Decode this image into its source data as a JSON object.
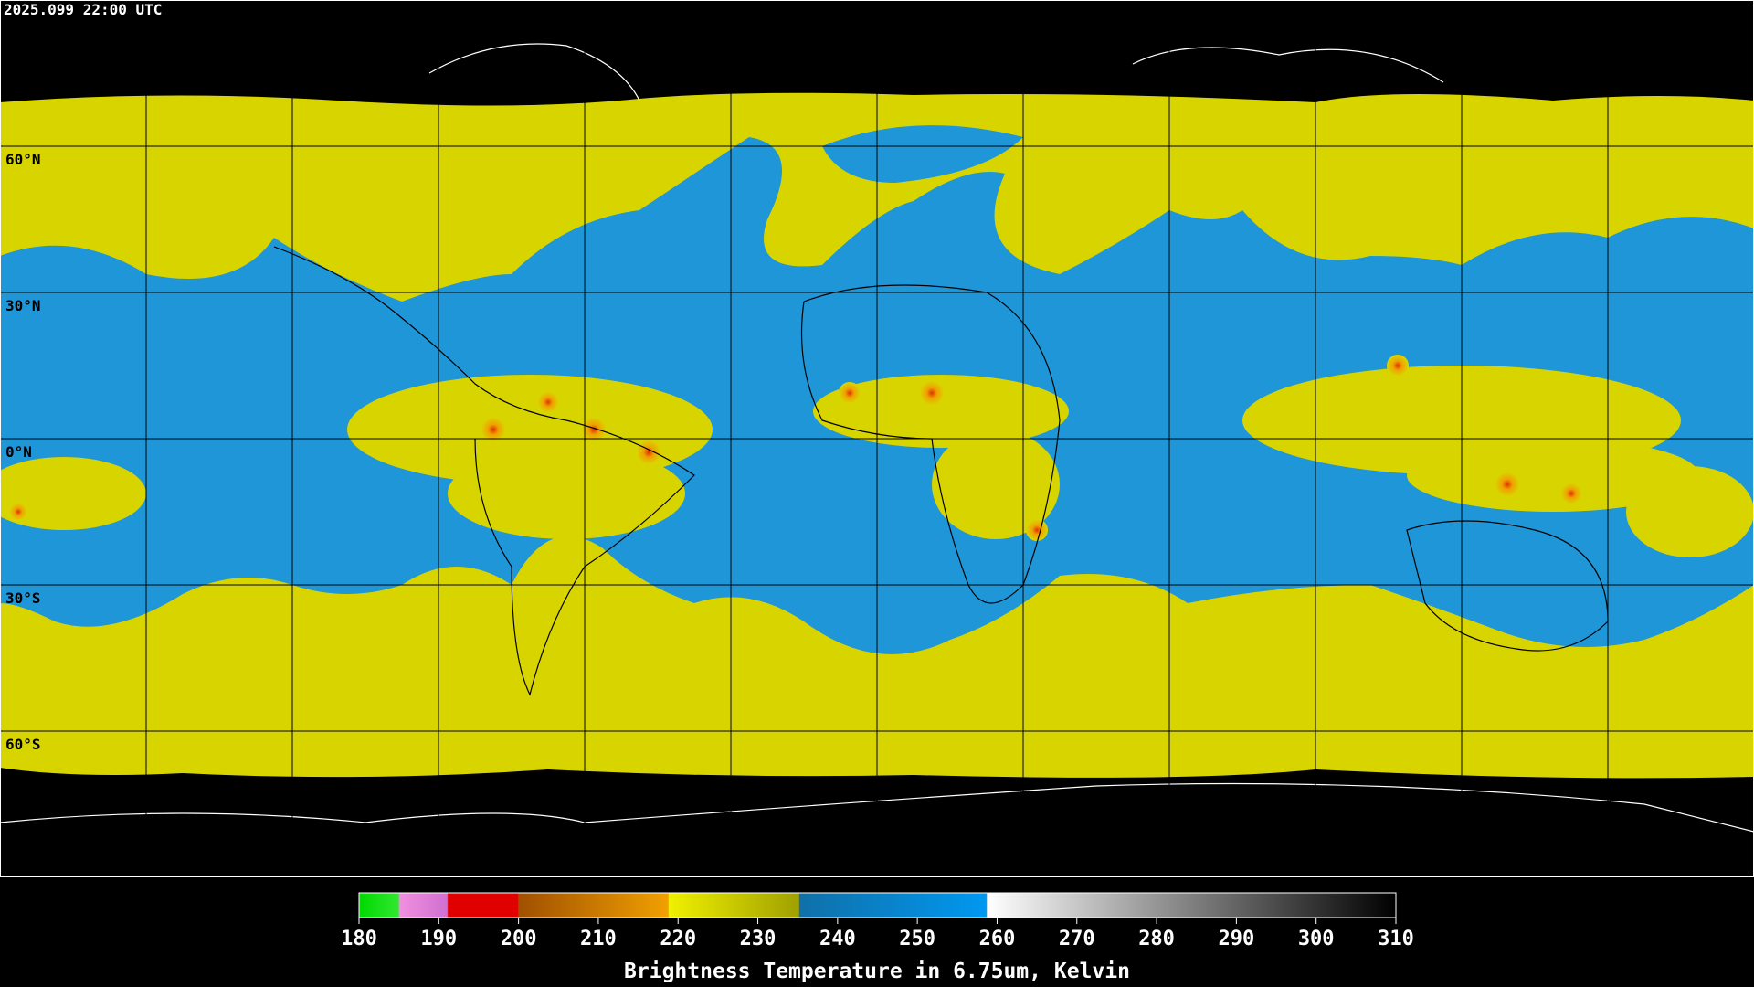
{
  "timestamp": "2025.099 22:00 UTC",
  "latitude_labels": [
    "60°N",
    "30°N",
    "0°N",
    "30°S",
    "60°S"
  ],
  "colorbar": {
    "title": "Brightness Temperature in 6.75um, Kelvin",
    "range": [
      180,
      310
    ],
    "ticks": [
      180,
      190,
      200,
      210,
      220,
      230,
      240,
      250,
      260,
      270,
      280,
      290,
      300,
      310
    ]
  }
}
